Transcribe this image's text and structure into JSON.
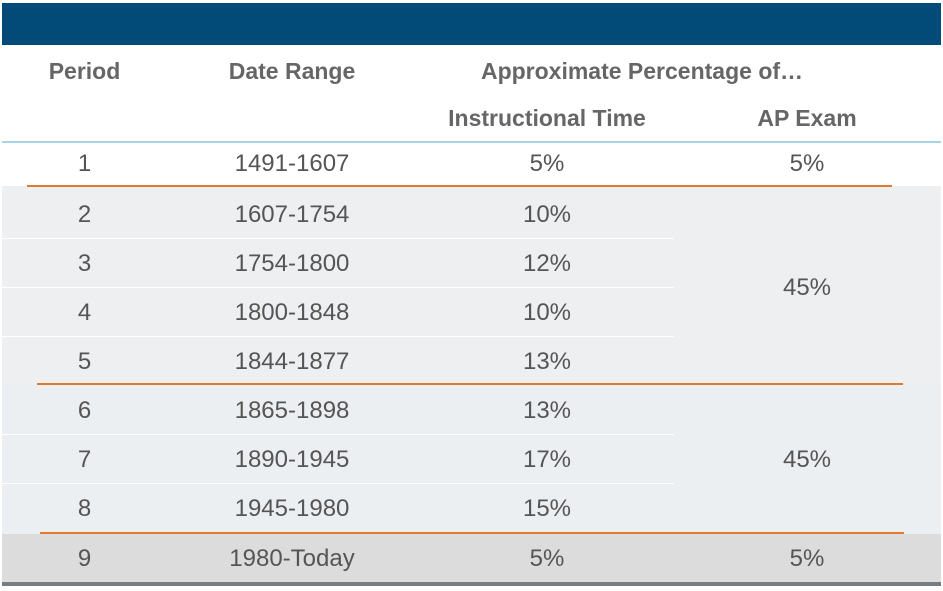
{
  "headers": {
    "period": "Period",
    "date_range": "Date Range",
    "approx": "Approximate Percentage of…",
    "instructional": "Instructional Time",
    "ap_exam": "AP Exam"
  },
  "rows": [
    {
      "period": "1",
      "range": "1491-1607",
      "time": "5%"
    },
    {
      "period": "2",
      "range": "1607-1754",
      "time": "10%"
    },
    {
      "period": "3",
      "range": "1754-1800",
      "time": "12%"
    },
    {
      "period": "4",
      "range": "1800-1848",
      "time": "10%"
    },
    {
      "period": "5",
      "range": "1844-1877",
      "time": "13%"
    },
    {
      "period": "6",
      "range": "1865-1898",
      "time": "13%"
    },
    {
      "period": "7",
      "range": "1890-1945",
      "time": "17%"
    },
    {
      "period": "8",
      "range": "1945-1980",
      "time": "15%"
    },
    {
      "period": "9",
      "range": "1980-Today",
      "time": "5%"
    }
  ],
  "ap_groups": [
    "5%",
    "45%",
    "45%",
    "5%"
  ],
  "colors": {
    "header_bar": "#024b78",
    "separator": "#e07a2e",
    "rule": "#a8d3e6"
  }
}
